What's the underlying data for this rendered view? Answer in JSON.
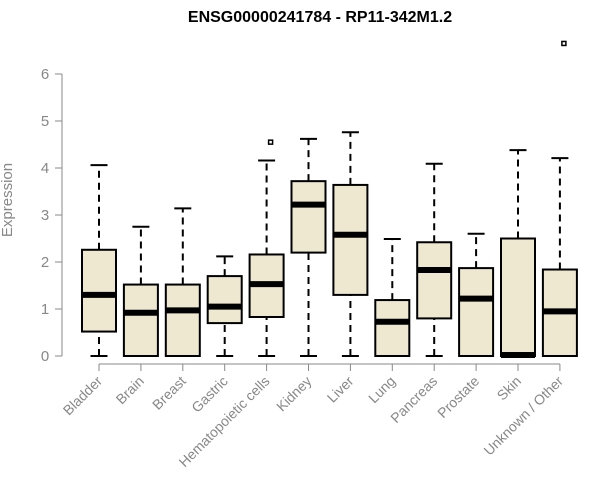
{
  "chart_data": {
    "type": "boxplot",
    "title": "ENSG00000241784 - RP11-342M1.2",
    "ylabel": "Expression",
    "xlabel": "",
    "ylim": [
      0,
      6.8
    ],
    "yticks": [
      0,
      1,
      2,
      3,
      4,
      5,
      6
    ],
    "box_fill": "#efe8d0",
    "categories": [
      "Bladder",
      "Brain",
      "Breast",
      "Gastric",
      "Hematopoietic cells",
      "Kidney",
      "Liver",
      "Lung",
      "Pancreas",
      "Prostate",
      "Skin",
      "Unknown / Other"
    ],
    "boxes": [
      {
        "min": 0,
        "q1": 0.52,
        "median": 1.3,
        "q3": 2.26,
        "max": 4.06,
        "outliers": []
      },
      {
        "min": 0,
        "q1": 0,
        "median": 0.92,
        "q3": 1.52,
        "max": 2.75,
        "outliers": []
      },
      {
        "min": 0,
        "q1": 0,
        "median": 0.97,
        "q3": 1.52,
        "max": 3.14,
        "outliers": []
      },
      {
        "min": 0,
        "q1": 0.7,
        "median": 1.05,
        "q3": 1.7,
        "max": 2.12,
        "outliers": []
      },
      {
        "min": 0,
        "q1": 0.83,
        "median": 1.53,
        "q3": 2.16,
        "max": 4.16,
        "outliers": [
          4.55
        ]
      },
      {
        "min": 0,
        "q1": 2.2,
        "median": 3.22,
        "q3": 3.72,
        "max": 4.62,
        "outliers": []
      },
      {
        "min": 0,
        "q1": 1.3,
        "median": 2.58,
        "q3": 3.64,
        "max": 4.76,
        "outliers": []
      },
      {
        "min": 0,
        "q1": 0,
        "median": 0.73,
        "q3": 1.19,
        "max": 2.49,
        "outliers": []
      },
      {
        "min": 0,
        "q1": 0.8,
        "median": 1.83,
        "q3": 2.42,
        "max": 4.09,
        "outliers": []
      },
      {
        "min": 0,
        "q1": 0,
        "median": 1.22,
        "q3": 1.87,
        "max": 2.6,
        "outliers": []
      },
      {
        "min": 0,
        "q1": 0,
        "median": 0.02,
        "q3": 2.5,
        "max": 4.38,
        "outliers": []
      },
      {
        "min": 0,
        "q1": 0,
        "median": 0.95,
        "q3": 1.84,
        "max": 4.21,
        "outliers": [
          6.65
        ]
      }
    ]
  }
}
